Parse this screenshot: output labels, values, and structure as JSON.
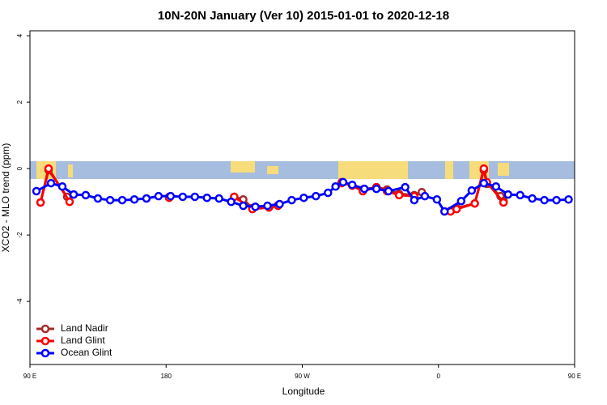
{
  "chart_data": {
    "type": "line",
    "title": "10N-20N January (Ver 10)   2015-01-01 to 2020-12-18",
    "x_label": "Longitude",
    "y_label": "XCO2 - MLO trend (ppm)",
    "xlim": [
      90,
      450
    ],
    "ylim": [
      -5.9,
      4.15
    ],
    "xticks": [
      {
        "value": 90,
        "label": "90 E"
      },
      {
        "value": 180,
        "label": "180"
      },
      {
        "value": 270,
        "label": "90 W"
      },
      {
        "value": 360,
        "label": "0"
      },
      {
        "value": 450,
        "label": "90 E"
      }
    ],
    "yticks": [
      -4,
      -2,
      0,
      2,
      4
    ],
    "legend": "bottom-left",
    "series": [
      {
        "name": "Land Nadir",
        "color": "#a52a2a",
        "x": [
          97,
          102.3,
          114.6,
          null,
          182,
          null,
          225,
          231,
          237,
          248,
          254,
          null,
          296,
          303,
          310,
          319,
          326,
          334,
          344,
          349,
          null,
          368,
          372,
          384,
          390,
          392,
          401,
          403
        ],
        "values": [
          -1.02,
          -0.05,
          -0.85,
          null,
          -0.85,
          null,
          -0.85,
          -0.93,
          -1.19,
          -1.17,
          -1.1,
          null,
          -0.41,
          -0.51,
          -0.63,
          -0.56,
          -0.63,
          -0.76,
          -0.8,
          -0.71,
          null,
          -1.27,
          -1.19,
          -1.05,
          -0.05,
          -0.46,
          -0.83,
          -0.98
        ]
      },
      {
        "name": "Land Glint",
        "color": "#ff0000",
        "x": [
          97,
          102.3,
          116.2,
          null,
          182,
          null,
          225,
          237,
          248,
          254,
          null,
          296,
          303,
          310,
          319,
          326,
          334,
          344,
          null,
          368,
          372,
          384,
          390,
          392,
          403
        ],
        "values": [
          -1.02,
          0,
          -1.0,
          null,
          -0.88,
          null,
          -0.85,
          -1.22,
          -1.17,
          -1.12,
          null,
          -0.44,
          -0.51,
          -0.68,
          -0.56,
          -0.68,
          -0.8,
          -0.83,
          null,
          -1.29,
          -1.22,
          -1.05,
          0,
          -0.41,
          -1.02
        ]
      },
      {
        "name": "Ocean Glint",
        "color": "#0000ff",
        "x": [
          94.3,
          103.9,
          111.4,
          118.9,
          126.9,
          134.9,
          143,
          151,
          159,
          167,
          175,
          183,
          191,
          199,
          207,
          215,
          223,
          231,
          239,
          247,
          255,
          263,
          271,
          279,
          287,
          292,
          297,
          303,
          311,
          319,
          327,
          338,
          344,
          351,
          359,
          364,
          375,
          382,
          390,
          398,
          406,
          414,
          422,
          430,
          438,
          446
        ],
        "values": [
          -0.68,
          -0.44,
          -0.54,
          -0.78,
          -0.8,
          -0.9,
          -0.95,
          -0.95,
          -0.93,
          -0.9,
          -0.83,
          -0.83,
          -0.85,
          -0.85,
          -0.88,
          -0.9,
          -1.0,
          -1.12,
          -1.15,
          -1.12,
          -1.07,
          -0.95,
          -0.88,
          -0.83,
          -0.73,
          -0.54,
          -0.41,
          -0.49,
          -0.61,
          -0.61,
          -0.68,
          -0.56,
          -0.95,
          -0.83,
          -0.93,
          -1.29,
          -0.98,
          -0.66,
          -0.44,
          -0.54,
          -0.78,
          -0.8,
          -0.9,
          -0.95,
          -0.95,
          -0.93
        ]
      }
    ]
  }
}
